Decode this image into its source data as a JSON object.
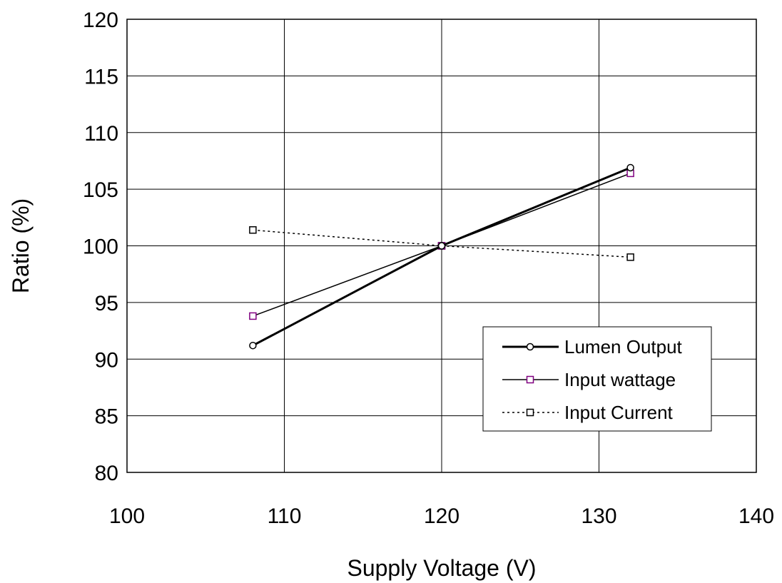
{
  "chart_data": {
    "type": "line",
    "xlabel": "Supply Voltage (V)",
    "ylabel": "Ratio (%)",
    "xlim": [
      100,
      140
    ],
    "ylim": [
      80,
      120
    ],
    "x_ticks": [
      100,
      110,
      120,
      130,
      140
    ],
    "y_ticks": [
      80,
      85,
      90,
      95,
      100,
      105,
      110,
      115,
      120
    ],
    "grid": true,
    "legend_position": "bottom-right",
    "series": [
      {
        "name": "Lumen Output",
        "x": [
          108,
          120,
          132
        ],
        "y": [
          91.2,
          100.0,
          106.9
        ],
        "color": "#000000",
        "line_style": "solid-thick",
        "marker": "circle",
        "marker_color": "#000000"
      },
      {
        "name": "Input wattage",
        "x": [
          108,
          120,
          132
        ],
        "y": [
          93.8,
          100.0,
          106.4
        ],
        "color": "#000000",
        "line_style": "solid",
        "marker": "square",
        "marker_color": "#800080"
      },
      {
        "name": "Input Current",
        "x": [
          108,
          120,
          132
        ],
        "y": [
          101.4,
          100.0,
          99.0
        ],
        "color": "#000000",
        "line_style": "dotted",
        "marker": "square",
        "marker_color": "#000000"
      }
    ]
  }
}
